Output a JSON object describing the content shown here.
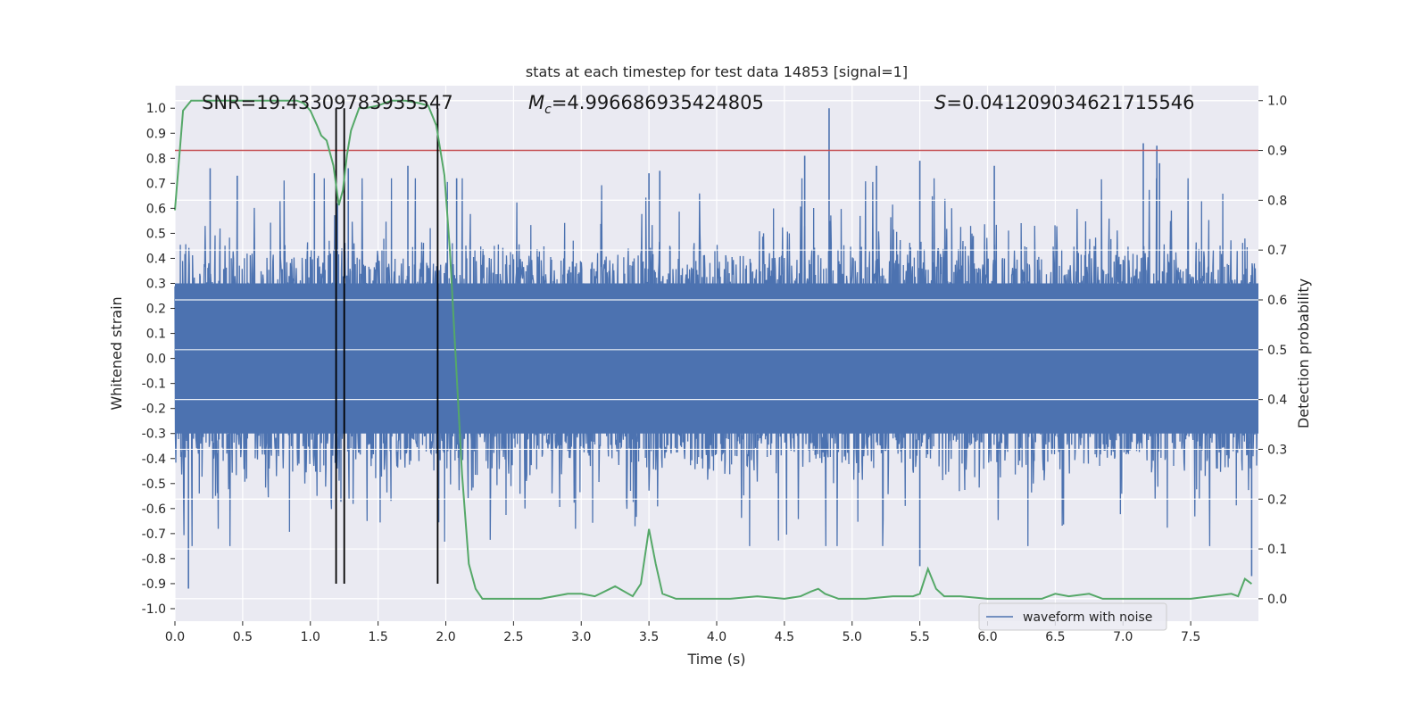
{
  "chart_data": {
    "type": "line",
    "title": "stats at each timestep for test data 14853 [signal=1]",
    "xlabel": "Time (s)",
    "ylabel": "Whitened strain",
    "ylabel_right": "Detection probability",
    "xlim": [
      0.0,
      8.0
    ],
    "ylim": [
      -1.05,
      1.09
    ],
    "ylim_right": [
      -0.045,
      1.03
    ],
    "xticks": [
      "0.0",
      "0.5",
      "1.0",
      "1.5",
      "2.0",
      "2.5",
      "3.0",
      "3.5",
      "4.0",
      "4.5",
      "5.0",
      "5.5",
      "6.0",
      "6.5",
      "7.0",
      "7.5"
    ],
    "yticks": [
      "1.0",
      "0.9",
      "0.8",
      "0.7",
      "0.6",
      "0.5",
      "0.4",
      "0.3",
      "0.2",
      "0.1",
      "0.0",
      "-0.1",
      "-0.2",
      "-0.3",
      "-0.4",
      "-0.5",
      "-0.6",
      "-0.7",
      "-0.8",
      "-0.9",
      "-1.0"
    ],
    "yticks_right": [
      "1.0",
      "0.9",
      "0.8",
      "0.7",
      "0.6",
      "0.5",
      "0.4",
      "0.3",
      "0.2",
      "0.1",
      "0.0"
    ],
    "grid": true,
    "legend_position": "lower-right",
    "annotations": {
      "snr": "SNR=19.43309783935547",
      "mc_symbol": "M",
      "mc_sub": "c",
      "mc_value": "=4.996686935424805",
      "s_symbol": "S",
      "s_value": "=0.041209034621715546"
    },
    "threshold": {
      "axis": "right",
      "value": 0.9,
      "color": "#c44e52"
    },
    "vlines": [
      1.19,
      1.25,
      1.94
    ],
    "vlines_range": [
      -0.9,
      1.0
    ],
    "series": [
      {
        "name": "waveform with noise",
        "axis": "left",
        "color": "#4c72b0",
        "envelope_core": 0.3,
        "spikes": [
          {
            "t": 0.1,
            "v": -0.92
          },
          {
            "t": 0.26,
            "v": 0.76
          },
          {
            "t": 0.46,
            "v": 0.73
          },
          {
            "t": 1.03,
            "v": 0.74
          },
          {
            "t": 1.2,
            "v": 0.62
          },
          {
            "t": 1.28,
            "v": 0.76
          },
          {
            "t": 1.72,
            "v": 0.77
          },
          {
            "t": 2.08,
            "v": 0.72
          },
          {
            "t": 3.5,
            "v": 0.74
          },
          {
            "t": 3.58,
            "v": 0.75
          },
          {
            "t": 4.65,
            "v": 0.81
          },
          {
            "t": 4.83,
            "v": 1.0
          },
          {
            "t": 5.18,
            "v": 0.77
          },
          {
            "t": 5.5,
            "v": 0.79
          },
          {
            "t": 5.5,
            "v": -0.83
          },
          {
            "t": 6.05,
            "v": 0.77
          },
          {
            "t": 7.15,
            "v": 0.86
          },
          {
            "t": 7.25,
            "v": 0.85
          },
          {
            "t": 7.27,
            "v": 0.78
          },
          {
            "t": 7.95,
            "v": -0.87
          }
        ]
      },
      {
        "name": "",
        "axis": "right",
        "color": "#55a868",
        "x": [
          0.0,
          0.06,
          0.12,
          0.2,
          0.3,
          0.5,
          0.7,
          0.9,
          0.95,
          1.0,
          1.05,
          1.08,
          1.12,
          1.17,
          1.21,
          1.24,
          1.27,
          1.3,
          1.36,
          1.41,
          1.5,
          1.6,
          1.7,
          1.8,
          1.87,
          1.93,
          1.99,
          2.03,
          2.08,
          2.12,
          2.17,
          2.22,
          2.27,
          2.35,
          2.5,
          2.7,
          2.9,
          3.0,
          3.1,
          3.25,
          3.38,
          3.44,
          3.5,
          3.55,
          3.6,
          3.7,
          3.9,
          4.1,
          4.3,
          4.5,
          4.62,
          4.7,
          4.75,
          4.8,
          4.9,
          5.1,
          5.3,
          5.45,
          5.5,
          5.56,
          5.62,
          5.68,
          5.8,
          6.0,
          6.4,
          6.5,
          6.6,
          6.75,
          6.85,
          7.0,
          7.5,
          7.8,
          7.85,
          7.9,
          7.95
        ],
        "values": [
          0.78,
          0.98,
          1.0,
          1.0,
          1.0,
          1.0,
          1.0,
          1.0,
          0.995,
          0.98,
          0.95,
          0.93,
          0.92,
          0.87,
          0.79,
          0.82,
          0.89,
          0.94,
          0.985,
          0.985,
          0.99,
          1.0,
          1.0,
          0.995,
          0.99,
          0.95,
          0.85,
          0.7,
          0.45,
          0.25,
          0.07,
          0.02,
          0.0,
          0.0,
          0.0,
          0.0,
          0.01,
          0.01,
          0.005,
          0.025,
          0.005,
          0.03,
          0.14,
          0.07,
          0.01,
          0.0,
          0.0,
          0.0,
          0.005,
          0.0,
          0.005,
          0.015,
          0.02,
          0.01,
          0.0,
          0.0,
          0.005,
          0.005,
          0.01,
          0.06,
          0.02,
          0.005,
          0.005,
          0.0,
          0.0,
          0.01,
          0.005,
          0.01,
          0.0,
          0.0,
          0.0,
          0.01,
          0.005,
          0.04,
          0.03
        ]
      }
    ]
  }
}
